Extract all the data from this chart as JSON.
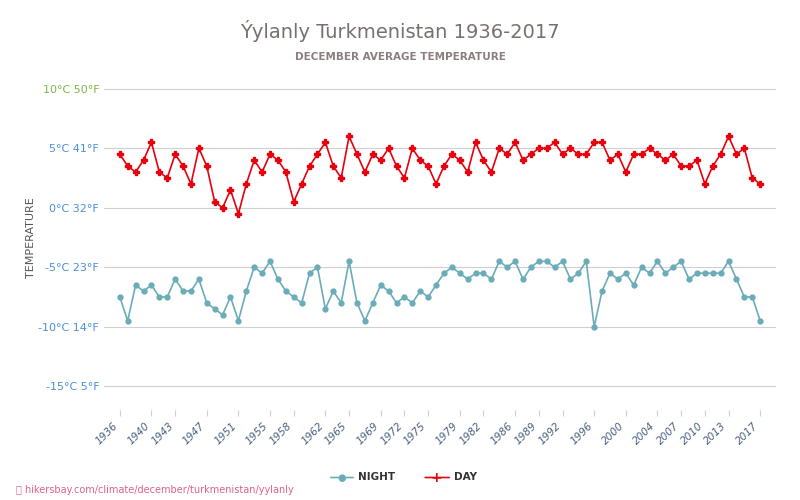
{
  "title": "Ýylanly Turkmenistan 1936-2017",
  "subtitle": "DECEMBER AVERAGE TEMPERATURE",
  "ylabel": "TEMPERATURE",
  "url": "hikersbay.com/climate/december/turkmenistan/yylanly",
  "ylim": [
    -17,
    12
  ],
  "yticks_c": [
    10,
    5,
    0,
    -5,
    -10,
    -15
  ],
  "yticks_f": [
    50,
    41,
    32,
    23,
    14,
    5
  ],
  "years": [
    1936,
    1937,
    1938,
    1939,
    1940,
    1941,
    1942,
    1943,
    1944,
    1945,
    1946,
    1947,
    1948,
    1949,
    1950,
    1951,
    1952,
    1953,
    1954,
    1955,
    1956,
    1957,
    1958,
    1959,
    1960,
    1961,
    1962,
    1963,
    1964,
    1965,
    1966,
    1967,
    1968,
    1969,
    1970,
    1971,
    1972,
    1973,
    1974,
    1975,
    1976,
    1977,
    1978,
    1979,
    1980,
    1981,
    1982,
    1983,
    1984,
    1985,
    1986,
    1987,
    1988,
    1989,
    1990,
    1991,
    1992,
    1993,
    1994,
    1995,
    1996,
    1997,
    1998,
    1999,
    2000,
    2001,
    2002,
    2003,
    2004,
    2005,
    2006,
    2007,
    2008,
    2009,
    2010,
    2011,
    2012,
    2013,
    2014,
    2015,
    2016,
    2017
  ],
  "day_temps": [
    4.5,
    3.5,
    3.0,
    4.0,
    5.5,
    3.0,
    2.5,
    4.5,
    3.5,
    2.0,
    5.0,
    3.5,
    0.5,
    0.0,
    1.5,
    -0.5,
    2.0,
    4.0,
    3.0,
    4.5,
    4.0,
    3.0,
    0.5,
    2.0,
    3.5,
    4.5,
    5.5,
    3.5,
    2.5,
    6.0,
    4.5,
    3.0,
    4.5,
    4.0,
    5.0,
    3.5,
    2.5,
    5.0,
    4.0,
    3.5,
    2.0,
    3.5,
    4.5,
    4.0,
    3.0,
    5.5,
    4.0,
    3.0,
    5.0,
    4.5,
    5.5,
    4.0,
    4.5,
    5.0,
    5.0,
    5.5,
    4.5,
    5.0,
    4.5,
    4.5,
    5.5,
    5.5,
    4.0,
    4.5,
    3.0,
    4.5,
    4.5,
    5.0,
    4.5,
    4.0,
    4.5,
    3.5,
    3.5,
    4.0,
    2.0,
    3.5,
    4.5,
    6.0,
    4.5,
    5.0,
    2.5,
    2.0
  ],
  "night_temps": [
    -7.5,
    -9.5,
    -6.5,
    -7.0,
    -6.5,
    -7.5,
    -7.5,
    -6.0,
    -7.0,
    -7.0,
    -6.0,
    -8.0,
    -8.5,
    -9.0,
    -7.5,
    -9.5,
    -7.0,
    -5.0,
    -5.5,
    -4.5,
    -6.0,
    -7.0,
    -7.5,
    -8.0,
    -5.5,
    -5.0,
    -8.5,
    -7.0,
    -8.0,
    -4.5,
    -8.0,
    -9.5,
    -8.0,
    -6.5,
    -7.0,
    -8.0,
    -7.5,
    -8.0,
    -7.0,
    -7.5,
    -6.5,
    -5.5,
    -5.0,
    -5.5,
    -6.0,
    -5.5,
    -5.5,
    -6.0,
    -4.5,
    -5.0,
    -4.5,
    -6.0,
    -5.0,
    -4.5,
    -4.5,
    -5.0,
    -4.5,
    -6.0,
    -5.5,
    -4.5,
    -10.0,
    -7.0,
    -5.5,
    -6.0,
    -5.5,
    -6.5,
    -5.0,
    -5.5,
    -4.5,
    -5.5,
    -5.0,
    -4.5,
    -6.0,
    -5.5,
    -5.5,
    -5.5,
    -5.5,
    -4.5,
    -6.0,
    -7.5,
    -7.5,
    -9.5
  ],
  "xticks": [
    1936,
    1940,
    1943,
    1947,
    1951,
    1955,
    1958,
    1962,
    1965,
    1969,
    1972,
    1975,
    1979,
    1982,
    1986,
    1989,
    1992,
    1996,
    2000,
    2004,
    2007,
    2010,
    2013,
    2017
  ],
  "day_color": "#e8000d",
  "night_color": "#6aacb8",
  "grid_color": "#d0d0d0",
  "title_color": "#7a6f6f",
  "subtitle_color": "#8a7f7f",
  "ylabel_color": "#555555",
  "ytick_color_green": "#7db544",
  "ytick_color_blue": "#4a90d9",
  "xtick_color": "#4a6080",
  "background_color": "#ffffff",
  "url_color": "#e06090"
}
